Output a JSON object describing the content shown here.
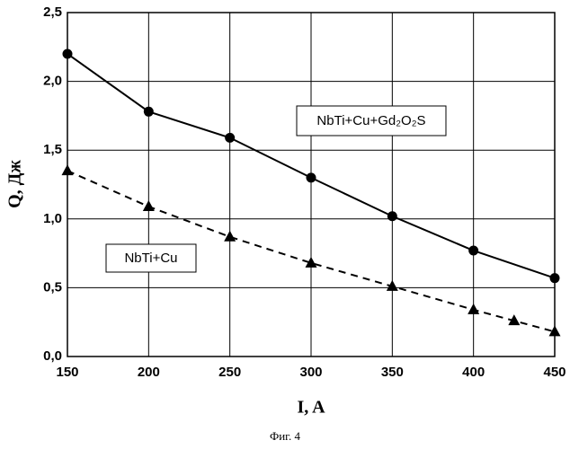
{
  "chart_data": {
    "type": "line",
    "x_label": "I, A",
    "y_label": "Q, Дж",
    "caption": "Фиг. 4",
    "xlim": [
      150,
      450
    ],
    "xticks": [
      150,
      200,
      250,
      300,
      350,
      400,
      450
    ],
    "ylim": [
      0,
      2.5
    ],
    "yticks": [
      {
        "value": 0,
        "label": "0,0"
      },
      {
        "value": 0.5,
        "label": "0,5"
      },
      {
        "value": 1,
        "label": "1,0"
      },
      {
        "value": 1.5,
        "label": "1,5"
      },
      {
        "value": 2,
        "label": "2,0"
      },
      {
        "value": 2.5,
        "label": "2,5"
      }
    ],
    "grid": true,
    "series": [
      {
        "name": "NbTi+Cu+Gd₂O₂S",
        "color": "#000000",
        "marker": "circle",
        "dashed": false,
        "x": [
          150,
          200,
          250,
          300,
          350,
          400,
          450
        ],
        "values": [
          2.2,
          1.78,
          1.59,
          1.3,
          1.02,
          0.77,
          0.57
        ]
      },
      {
        "name": "NbTi+Cu",
        "color": "#000000",
        "marker": "triangle",
        "dashed": true,
        "x": [
          150,
          200,
          250,
          300,
          350,
          400,
          425,
          450
        ],
        "values": [
          1.35,
          1.09,
          0.87,
          0.68,
          0.51,
          0.34,
          0.26,
          0.18
        ]
      }
    ]
  }
}
